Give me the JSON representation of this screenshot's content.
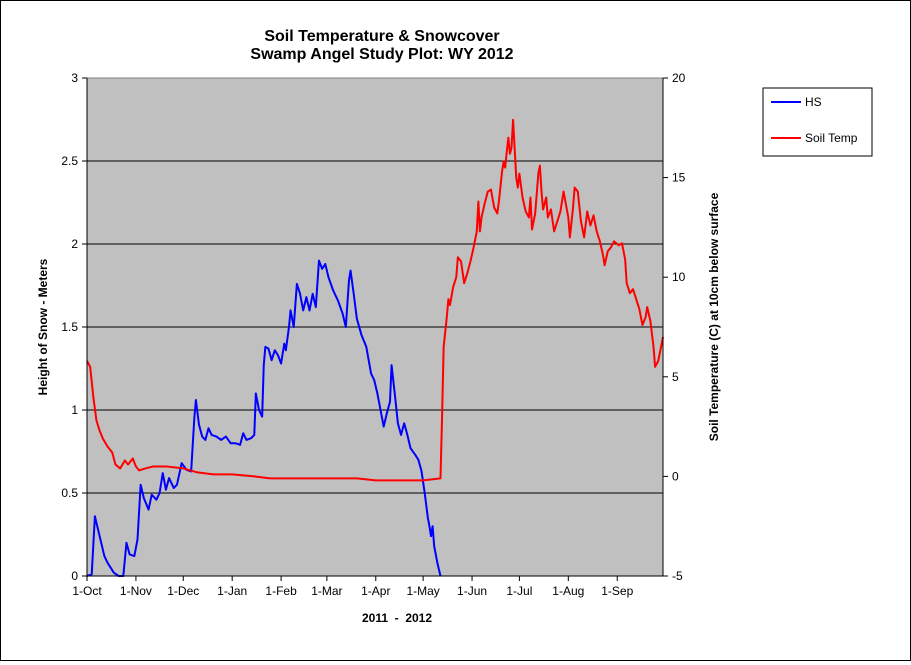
{
  "chart_data": {
    "type": "line",
    "title_lines": [
      "Soil Temperature & Snowcover",
      "Swamp Angel Study Plot: WY 2012"
    ],
    "xlabel": "2011  -  2012",
    "ylabel_left": "Height of Snow - Meters",
    "ylabel_right": "Soil Temperature (C) at 10cm below surface",
    "x_start": "2011-10-01",
    "x_end": "2012-09-30",
    "x_ticks": [
      {
        "date": "2011-10-01",
        "label": "1-Oct"
      },
      {
        "date": "2011-11-01",
        "label": "1-Nov"
      },
      {
        "date": "2011-12-01",
        "label": "1-Dec"
      },
      {
        "date": "2012-01-01",
        "label": "1-Jan"
      },
      {
        "date": "2012-02-01",
        "label": "1-Feb"
      },
      {
        "date": "2012-03-01",
        "label": "1-Mar"
      },
      {
        "date": "2012-04-01",
        "label": "1-Apr"
      },
      {
        "date": "2012-05-01",
        "label": "1-May"
      },
      {
        "date": "2012-06-01",
        "label": "1-Jun"
      },
      {
        "date": "2012-07-01",
        "label": "1-Jul"
      },
      {
        "date": "2012-08-01",
        "label": "1-Aug"
      },
      {
        "date": "2012-09-01",
        "label": "1-Sep"
      }
    ],
    "y_left": {
      "min": 0,
      "max": 3,
      "ticks": [
        "0",
        "0.5",
        "1",
        "1.5",
        "2",
        "2.5",
        "3"
      ]
    },
    "y_right": {
      "min": -5,
      "max": 20,
      "ticks": [
        "-5",
        "0",
        "5",
        "10",
        "15",
        "20"
      ]
    },
    "grid": "horizontal at left-axis major ticks",
    "plot_background": "#c0c0c0",
    "legend_position": "right",
    "series": [
      {
        "name": "HS",
        "axis": "left",
        "color": "#0000ff",
        "points": [
          [
            "2011-10-01",
            0.0
          ],
          [
            "2011-10-04",
            0.01
          ],
          [
            "2011-10-06",
            0.36
          ],
          [
            "2011-10-08",
            0.28
          ],
          [
            "2011-10-10",
            0.2
          ],
          [
            "2011-10-12",
            0.12
          ],
          [
            "2011-10-14",
            0.08
          ],
          [
            "2011-10-16",
            0.05
          ],
          [
            "2011-10-18",
            0.02
          ],
          [
            "2011-10-21",
            0.0
          ],
          [
            "2011-10-24",
            0.0
          ],
          [
            "2011-10-26",
            0.2
          ],
          [
            "2011-10-28",
            0.13
          ],
          [
            "2011-10-31",
            0.12
          ],
          [
            "2011-11-02",
            0.22
          ],
          [
            "2011-11-04",
            0.55
          ],
          [
            "2011-11-06",
            0.47
          ],
          [
            "2011-11-09",
            0.4
          ],
          [
            "2011-11-11",
            0.49
          ],
          [
            "2011-11-14",
            0.46
          ],
          [
            "2011-11-16",
            0.5
          ],
          [
            "2011-11-18",
            0.62
          ],
          [
            "2011-11-20",
            0.52
          ],
          [
            "2011-11-22",
            0.59
          ],
          [
            "2011-11-25",
            0.53
          ],
          [
            "2011-11-27",
            0.55
          ],
          [
            "2011-11-30",
            0.68
          ],
          [
            "2011-12-03",
            0.64
          ],
          [
            "2011-12-06",
            0.63
          ],
          [
            "2011-12-08",
            0.95
          ],
          [
            "2011-12-09",
            1.06
          ],
          [
            "2011-12-11",
            0.91
          ],
          [
            "2011-12-13",
            0.84
          ],
          [
            "2011-12-15",
            0.82
          ],
          [
            "2011-12-17",
            0.89
          ],
          [
            "2011-12-19",
            0.85
          ],
          [
            "2011-12-22",
            0.84
          ],
          [
            "2011-12-25",
            0.82
          ],
          [
            "2011-12-28",
            0.84
          ],
          [
            "2011-12-31",
            0.8
          ],
          [
            "2012-01-03",
            0.8
          ],
          [
            "2012-01-06",
            0.79
          ],
          [
            "2012-01-08",
            0.86
          ],
          [
            "2012-01-10",
            0.82
          ],
          [
            "2012-01-13",
            0.83
          ],
          [
            "2012-01-15",
            0.85
          ],
          [
            "2012-01-16",
            1.1
          ],
          [
            "2012-01-18",
            1.0
          ],
          [
            "2012-01-20",
            0.96
          ],
          [
            "2012-01-21",
            1.27
          ],
          [
            "2012-01-22",
            1.38
          ],
          [
            "2012-01-24",
            1.37
          ],
          [
            "2012-01-26",
            1.3
          ],
          [
            "2012-01-28",
            1.36
          ],
          [
            "2012-01-30",
            1.33
          ],
          [
            "2012-02-01",
            1.28
          ],
          [
            "2012-02-03",
            1.4
          ],
          [
            "2012-02-04",
            1.36
          ],
          [
            "2012-02-06",
            1.5
          ],
          [
            "2012-02-07",
            1.6
          ],
          [
            "2012-02-09",
            1.5
          ],
          [
            "2012-02-11",
            1.76
          ],
          [
            "2012-02-13",
            1.7
          ],
          [
            "2012-02-15",
            1.6
          ],
          [
            "2012-02-17",
            1.68
          ],
          [
            "2012-02-19",
            1.6
          ],
          [
            "2012-02-21",
            1.7
          ],
          [
            "2012-02-23",
            1.62
          ],
          [
            "2012-02-25",
            1.9
          ],
          [
            "2012-02-27",
            1.85
          ],
          [
            "2012-02-29",
            1.88
          ],
          [
            "2012-03-02",
            1.8
          ],
          [
            "2012-03-05",
            1.72
          ],
          [
            "2012-03-08",
            1.66
          ],
          [
            "2012-03-11",
            1.58
          ],
          [
            "2012-03-13",
            1.5
          ],
          [
            "2012-03-15",
            1.78
          ],
          [
            "2012-03-16",
            1.84
          ],
          [
            "2012-03-18",
            1.7
          ],
          [
            "2012-03-20",
            1.55
          ],
          [
            "2012-03-23",
            1.45
          ],
          [
            "2012-03-26",
            1.38
          ],
          [
            "2012-03-29",
            1.22
          ],
          [
            "2012-03-31",
            1.18
          ],
          [
            "2012-04-02",
            1.1
          ],
          [
            "2012-04-04",
            1.0
          ],
          [
            "2012-04-06",
            0.9
          ],
          [
            "2012-04-08",
            0.98
          ],
          [
            "2012-04-10",
            1.05
          ],
          [
            "2012-04-11",
            1.27
          ],
          [
            "2012-04-13",
            1.1
          ],
          [
            "2012-04-15",
            0.92
          ],
          [
            "2012-04-17",
            0.85
          ],
          [
            "2012-04-19",
            0.92
          ],
          [
            "2012-04-21",
            0.85
          ],
          [
            "2012-04-23",
            0.77
          ],
          [
            "2012-04-26",
            0.73
          ],
          [
            "2012-04-28",
            0.7
          ],
          [
            "2012-04-30",
            0.63
          ],
          [
            "2012-05-02",
            0.5
          ],
          [
            "2012-05-04",
            0.35
          ],
          [
            "2012-05-05",
            0.3
          ],
          [
            "2012-05-06",
            0.24
          ],
          [
            "2012-05-07",
            0.3
          ],
          [
            "2012-05-08",
            0.18
          ],
          [
            "2012-05-10",
            0.08
          ],
          [
            "2012-05-12",
            0.0
          ]
        ]
      },
      {
        "name": "Soil Temp",
        "axis": "right",
        "color": "#ff0000",
        "points": [
          [
            "2011-10-01",
            5.8
          ],
          [
            "2011-10-03",
            5.5
          ],
          [
            "2011-10-05",
            4.0
          ],
          [
            "2011-10-07",
            2.8
          ],
          [
            "2011-10-09",
            2.3
          ],
          [
            "2011-10-11",
            1.9
          ],
          [
            "2011-10-14",
            1.5
          ],
          [
            "2011-10-17",
            1.2
          ],
          [
            "2011-10-19",
            0.6
          ],
          [
            "2011-10-22",
            0.4
          ],
          [
            "2011-10-25",
            0.8
          ],
          [
            "2011-10-27",
            0.6
          ],
          [
            "2011-10-30",
            0.9
          ],
          [
            "2011-11-01",
            0.5
          ],
          [
            "2011-11-03",
            0.3
          ],
          [
            "2011-11-07",
            0.4
          ],
          [
            "2011-11-12",
            0.5
          ],
          [
            "2011-11-20",
            0.5
          ],
          [
            "2011-12-01",
            0.4
          ],
          [
            "2011-12-10",
            0.2
          ],
          [
            "2011-12-20",
            0.1
          ],
          [
            "2012-01-01",
            0.1
          ],
          [
            "2012-01-15",
            0.0
          ],
          [
            "2012-01-25",
            -0.1
          ],
          [
            "2012-02-15",
            -0.1
          ],
          [
            "2012-03-01",
            -0.1
          ],
          [
            "2012-03-20",
            -0.1
          ],
          [
            "2012-04-01",
            -0.2
          ],
          [
            "2012-04-15",
            -0.2
          ],
          [
            "2012-05-01",
            -0.2
          ],
          [
            "2012-05-12",
            -0.1
          ],
          [
            "2012-05-13",
            3.0
          ],
          [
            "2012-05-14",
            6.5
          ],
          [
            "2012-05-16",
            8.0
          ],
          [
            "2012-05-17",
            8.9
          ],
          [
            "2012-05-18",
            8.6
          ],
          [
            "2012-05-20",
            9.5
          ],
          [
            "2012-05-22",
            10.0
          ],
          [
            "2012-05-23",
            11.0
          ],
          [
            "2012-05-25",
            10.8
          ],
          [
            "2012-05-27",
            9.7
          ],
          [
            "2012-05-29",
            10.2
          ],
          [
            "2012-05-31",
            10.8
          ],
          [
            "2012-06-02",
            11.5
          ],
          [
            "2012-06-04",
            12.3
          ],
          [
            "2012-06-05",
            13.8
          ],
          [
            "2012-06-06",
            12.3
          ],
          [
            "2012-06-07",
            13.0
          ],
          [
            "2012-06-09",
            13.7
          ],
          [
            "2012-06-11",
            14.3
          ],
          [
            "2012-06-13",
            14.4
          ],
          [
            "2012-06-15",
            13.5
          ],
          [
            "2012-06-17",
            13.2
          ],
          [
            "2012-06-18",
            13.8
          ],
          [
            "2012-06-20",
            15.3
          ],
          [
            "2012-06-21",
            15.8
          ],
          [
            "2012-06-22",
            15.5
          ],
          [
            "2012-06-23",
            16.3
          ],
          [
            "2012-06-24",
            17.0
          ],
          [
            "2012-06-25",
            16.2
          ],
          [
            "2012-06-26",
            16.5
          ],
          [
            "2012-06-27",
            17.9
          ],
          [
            "2012-06-29",
            15.0
          ],
          [
            "2012-06-30",
            14.5
          ],
          [
            "2012-07-01",
            15.2
          ],
          [
            "2012-07-03",
            14.0
          ],
          [
            "2012-07-05",
            13.3
          ],
          [
            "2012-07-07",
            13.0
          ],
          [
            "2012-07-08",
            14.0
          ],
          [
            "2012-07-09",
            12.4
          ],
          [
            "2012-07-11",
            13.2
          ],
          [
            "2012-07-13",
            15.2
          ],
          [
            "2012-07-14",
            15.6
          ],
          [
            "2012-07-15",
            14.3
          ],
          [
            "2012-07-16",
            13.4
          ],
          [
            "2012-07-18",
            14.0
          ],
          [
            "2012-07-19",
            13.0
          ],
          [
            "2012-07-21",
            13.4
          ],
          [
            "2012-07-23",
            12.3
          ],
          [
            "2012-07-25",
            12.8
          ],
          [
            "2012-07-27",
            13.3
          ],
          [
            "2012-07-29",
            14.3
          ],
          [
            "2012-08-01",
            13.0
          ],
          [
            "2012-08-02",
            12.0
          ],
          [
            "2012-08-04",
            13.5
          ],
          [
            "2012-08-05",
            14.5
          ],
          [
            "2012-08-07",
            14.3
          ],
          [
            "2012-08-09",
            12.8
          ],
          [
            "2012-08-11",
            12.0
          ],
          [
            "2012-08-13",
            13.3
          ],
          [
            "2012-08-15",
            12.6
          ],
          [
            "2012-08-17",
            13.1
          ],
          [
            "2012-08-19",
            12.3
          ],
          [
            "2012-08-21",
            11.8
          ],
          [
            "2012-08-23",
            11.1
          ],
          [
            "2012-08-24",
            10.6
          ],
          [
            "2012-08-26",
            11.3
          ],
          [
            "2012-08-28",
            11.5
          ],
          [
            "2012-08-30",
            11.8
          ],
          [
            "2012-09-02",
            11.6
          ],
          [
            "2012-09-04",
            11.7
          ],
          [
            "2012-09-06",
            10.9
          ],
          [
            "2012-09-07",
            9.7
          ],
          [
            "2012-09-09",
            9.2
          ],
          [
            "2012-09-11",
            9.4
          ],
          [
            "2012-09-13",
            8.9
          ],
          [
            "2012-09-15",
            8.4
          ],
          [
            "2012-09-17",
            7.6
          ],
          [
            "2012-09-19",
            8.0
          ],
          [
            "2012-09-20",
            8.5
          ],
          [
            "2012-09-22",
            7.8
          ],
          [
            "2012-09-24",
            6.5
          ],
          [
            "2012-09-25",
            5.5
          ],
          [
            "2012-09-27",
            5.8
          ],
          [
            "2012-09-30",
            7.0
          ]
        ]
      }
    ]
  }
}
